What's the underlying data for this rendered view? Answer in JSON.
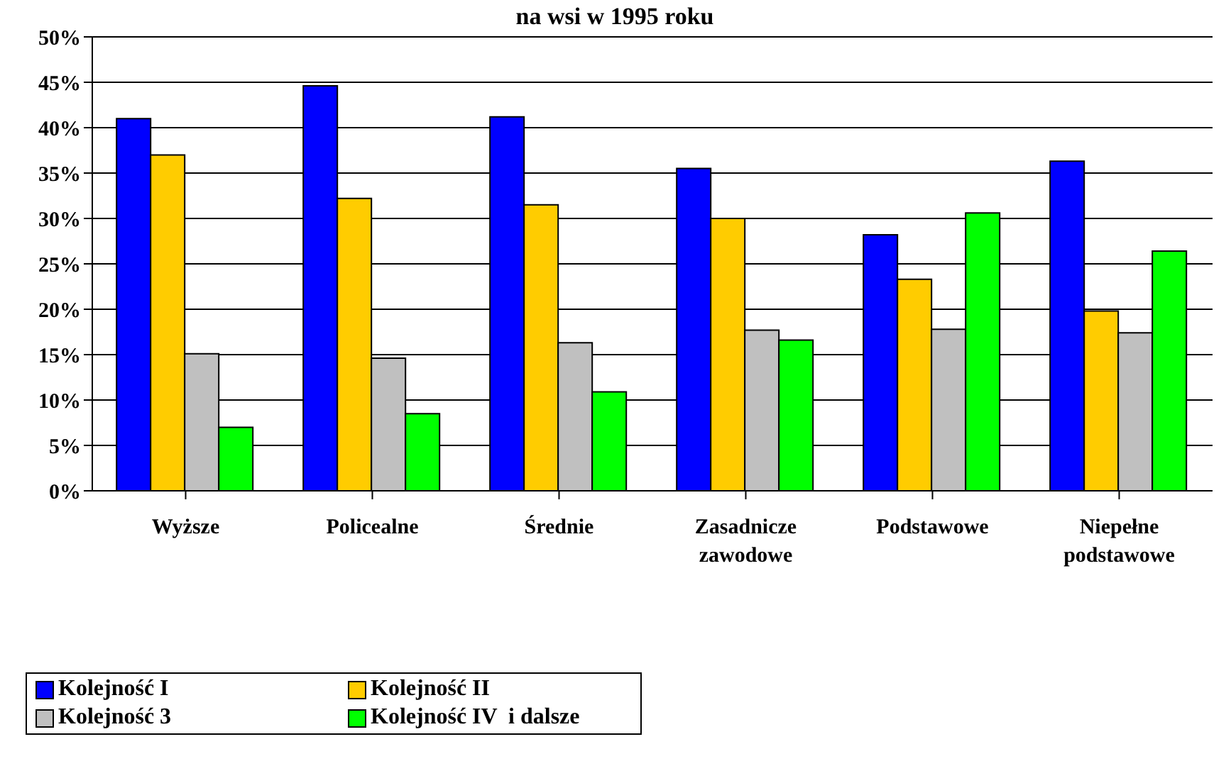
{
  "chart_data": {
    "type": "bar",
    "title": "na wsi w 1995 roku",
    "categories": [
      "Wyższe",
      "Policealne",
      "Średnie",
      "Zasadnicze zawodowe",
      "Podstawowe",
      "Niepełne podstawowe"
    ],
    "series": [
      {
        "name": "Kolejność I",
        "color": "#0000ff",
        "values": [
          41,
          44.6,
          41.2,
          35.5,
          28.2,
          36.3
        ]
      },
      {
        "name": "Kolejność II",
        "color": "#ffcc00",
        "values": [
          37,
          32.2,
          31.5,
          30,
          23.3,
          19.8
        ]
      },
      {
        "name": "Kolejność 3",
        "color": "#c0c0c0",
        "values": [
          15.1,
          14.6,
          16.3,
          17.7,
          17.8,
          17.4
        ]
      },
      {
        "name": "Kolejność IV  i dalsze",
        "color": "#00ff00",
        "values": [
          7,
          8.5,
          10.9,
          16.6,
          30.6,
          26.4
        ]
      }
    ],
    "ylim": [
      0,
      50
    ],
    "yticks": [
      {
        "value": 0,
        "label": "0%"
      },
      {
        "value": 5,
        "label": "5%"
      },
      {
        "value": 10,
        "label": "10%"
      },
      {
        "value": 15,
        "label": "15%"
      },
      {
        "value": 20,
        "label": "20%"
      },
      {
        "value": 25,
        "label": "25%"
      },
      {
        "value": 30,
        "label": "30%"
      },
      {
        "value": 35,
        "label": "35%"
      },
      {
        "value": 40,
        "label": "40%"
      },
      {
        "value": 45,
        "label": "45%"
      },
      {
        "value": 50,
        "label": "50%"
      }
    ],
    "grid": "y",
    "legend": "bottom left"
  }
}
